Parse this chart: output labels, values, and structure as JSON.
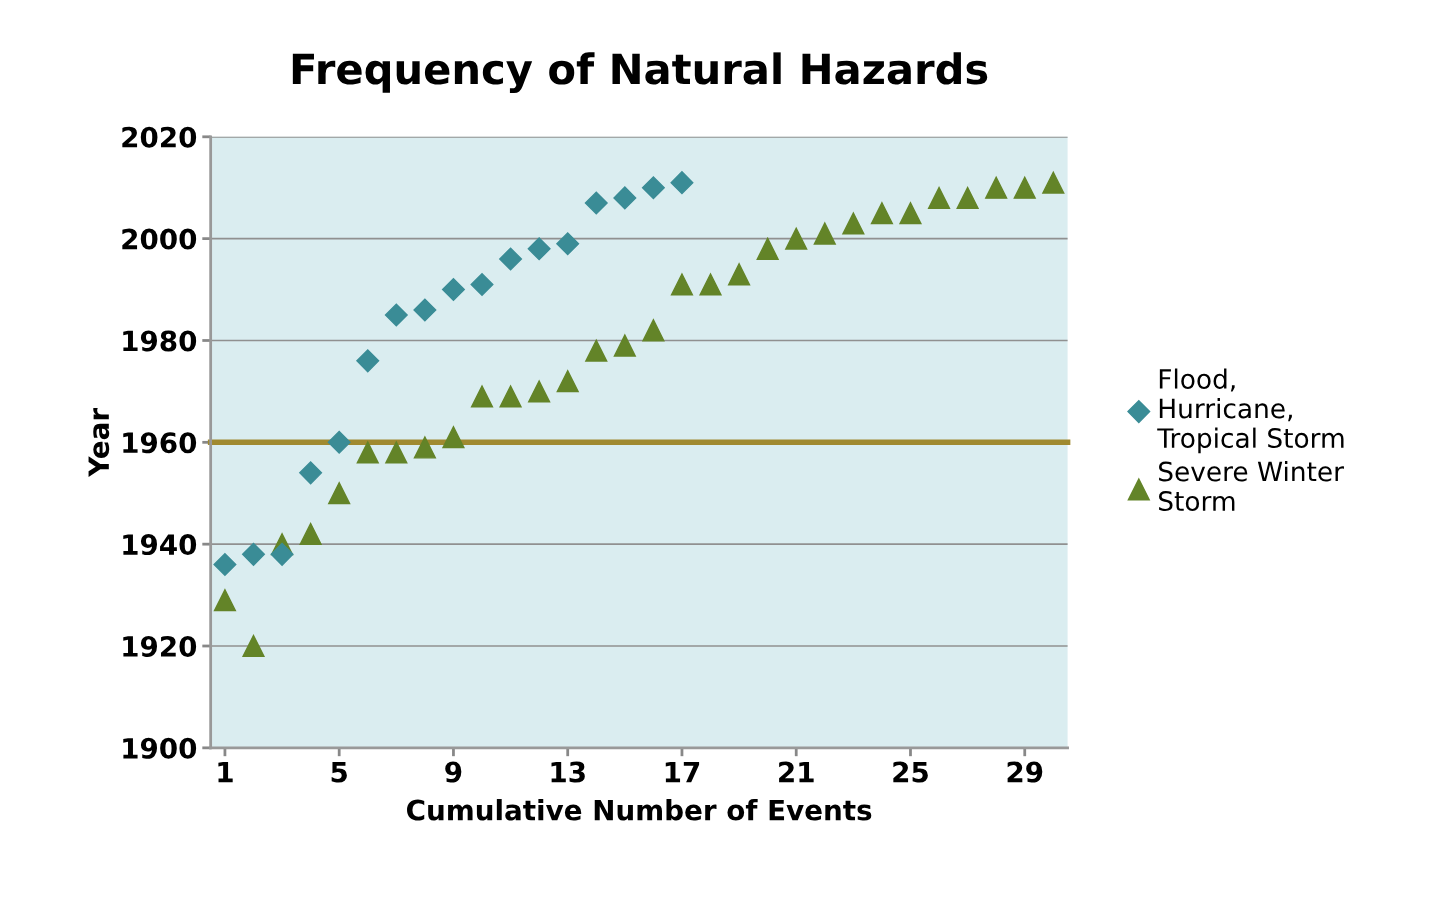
{
  "chart_data": {
    "type": "scatter",
    "title": "Frequency of Natural Hazards",
    "xlabel": "Cumulative Number of Events",
    "ylabel": "Year",
    "xlim": [
      0.5,
      30.5
    ],
    "xticks": [
      1,
      5,
      9,
      13,
      17,
      21,
      25,
      29
    ],
    "ylim": [
      1900,
      2020
    ],
    "yticks": [
      1900,
      1920,
      1940,
      1960,
      1980,
      2000,
      2020
    ],
    "grid": "y",
    "legend": "right",
    "ref_lines": [
      {
        "axis": "y",
        "value": 1960,
        "color": "#a08a30"
      }
    ],
    "series": [
      {
        "name": "Flood, Hurricane, Tropical Storm",
        "color": "#3a8c96",
        "marker": "diamond",
        "x": [
          1,
          2,
          3,
          4,
          5,
          6,
          7,
          8,
          9,
          10,
          11,
          12,
          13,
          14,
          15,
          16,
          17
        ],
        "values": [
          1936,
          1938,
          1938,
          1954,
          1960,
          1976,
          1985,
          1986,
          1990,
          1991,
          1996,
          1998,
          1999,
          2007,
          2008,
          2010,
          2011
        ]
      },
      {
        "name": "Severe Winter Storm",
        "color": "#638428",
        "marker": "triangle",
        "x": [
          1,
          2,
          3,
          4,
          5,
          6,
          7,
          8,
          9,
          10,
          11,
          12,
          13,
          14,
          15,
          16,
          17,
          18,
          19,
          20,
          21,
          22,
          23,
          24,
          25,
          26,
          27,
          28,
          29,
          30
        ],
        "values": [
          1929,
          1920,
          1940,
          1942,
          1950,
          1958,
          1958,
          1959,
          1961,
          1969,
          1969,
          1970,
          1972,
          1978,
          1979,
          1982,
          1991,
          1991,
          1993,
          1998,
          2000,
          2001,
          2003,
          2005,
          2005,
          2008,
          2008,
          2010,
          2010,
          2011
        ]
      }
    ]
  }
}
